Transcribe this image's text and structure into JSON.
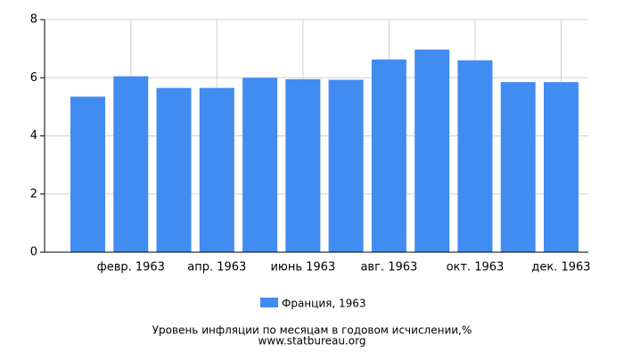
{
  "chart_data": {
    "type": "bar",
    "categories": [
      null,
      "февр. 1963",
      null,
      "апр. 1963",
      null,
      "июнь 1963",
      null,
      "авг. 1963",
      null,
      "окт. 1963",
      null,
      "дек. 1963"
    ],
    "series": [
      {
        "name": "Франция, 1963",
        "color": "#418cf0",
        "values": [
          5.35,
          6.05,
          5.65,
          5.65,
          6.0,
          5.95,
          5.93,
          6.63,
          6.97,
          6.6,
          5.85,
          5.85
        ]
      }
    ],
    "ylim": [
      0,
      8
    ],
    "yticks": [
      0,
      2,
      4,
      6,
      8
    ],
    "grid": true,
    "title": "Уровень инфляции по месяцам в годовом исчислении,%",
    "subtitle": "www.statbureau.org"
  }
}
